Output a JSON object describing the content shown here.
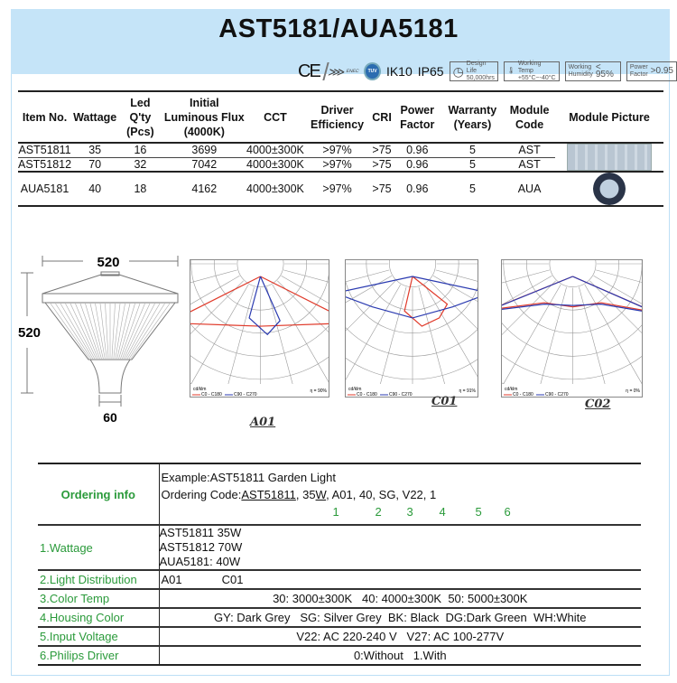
{
  "title": "AST5181/AUA5181",
  "certifications": {
    "marks": [
      "CE",
      "ENEC",
      "TUV"
    ],
    "ik": "IK10",
    "ip": "IP65",
    "design_life": [
      "Design Life",
      "50,000hrs"
    ],
    "working_temp": [
      "Working Temp",
      "+55°C~-40°C"
    ],
    "humidity": [
      "Working",
      "Humidity",
      "< 95%"
    ],
    "power_factor": [
      "Power",
      "Factor",
      ">0.95"
    ]
  },
  "spec_table": {
    "headers": [
      "Item No.",
      "Wattage",
      "Led Q'ty (Pcs)",
      "Initial Luminous Flux (4000K)",
      "CCT",
      "Driver Efficiency",
      "CRI",
      "Power Factor",
      "Warranty (Years)",
      "Module Code",
      "Module Picture"
    ],
    "rows": [
      [
        "AST51811",
        "35",
        "16",
        "3699",
        "4000±300K",
        ">97%",
        ">75",
        "0.96",
        "5",
        "AST"
      ],
      [
        "AST51812",
        "70",
        "32",
        "7042",
        "4000±300K",
        ">97%",
        ">75",
        "0.96",
        "5",
        "AST"
      ],
      [
        "AUA5181",
        "40",
        "18",
        "4162",
        "4000±300K",
        ">97%",
        ">75",
        "0.96",
        "5",
        "AUA"
      ]
    ]
  },
  "drawing": {
    "width": "520",
    "height": "520",
    "base": "60"
  },
  "polar": [
    {
      "label": "A01",
      "legend": [
        "C0 - C180",
        "C90 - C270"
      ],
      "eff": "η = 90%",
      "unit": "cd/klm"
    },
    {
      "label": "C01",
      "legend": [
        "C0 - C180",
        "C90 - C270"
      ],
      "eff": "η = 91%",
      "unit": "cd/klm"
    },
    {
      "label": "C02",
      "legend": [
        "C0 - C180",
        "C90 - C270"
      ],
      "eff": "η = 0%",
      "unit": "cd/klm"
    }
  ],
  "colors": {
    "c0": "#e03a2a",
    "c90": "#2a3ab0",
    "green": "#2a9a3a",
    "band": "#c5e4f8"
  },
  "ordering": {
    "label": "Ordering info",
    "example": "Example:AST51811 Garden Light",
    "code_prefix": "Ordering Code:",
    "code_parts": [
      "AST51811",
      ", 35",
      "W",
      ", A01, 40, SG, V22, 1"
    ],
    "indices": [
      "1",
      "2",
      "3",
      "4",
      "5",
      "6"
    ],
    "rows": [
      {
        "key": "1.Wattage",
        "values": [
          "AST51811 35W",
          "AST51812 70W",
          "AUA5181: 40W"
        ]
      },
      {
        "key": "2.Light Distribution",
        "values": [
          "A01",
          "C01"
        ]
      },
      {
        "key": "3.Color Temp",
        "value": "30: 3000±300K   40: 4000±300K  50: 5000±300K"
      },
      {
        "key": "4.Housing Color",
        "value": "GY: Dark Grey   SG: Silver Grey  BK: Black  DG:Dark Green  WH:White"
      },
      {
        "key": "5.Input Voltage",
        "value": "V22: AC 220-240 V   V27: AC 100-277V"
      },
      {
        "key": "6.Philips Driver",
        "value": "0:Without   1.With"
      }
    ]
  }
}
